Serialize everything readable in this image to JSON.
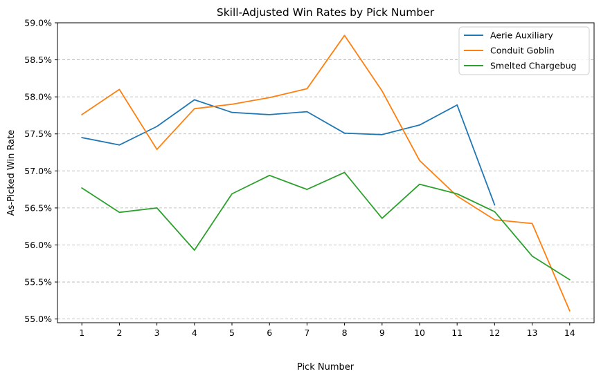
{
  "chart_data": {
    "type": "line",
    "title": "Skill-Adjusted Win Rates by Pick Number",
    "xlabel": "Pick Number",
    "ylabel": "As-Picked Win Rate",
    "x": [
      1,
      2,
      3,
      4,
      5,
      6,
      7,
      8,
      9,
      10,
      11,
      12,
      13,
      14
    ],
    "x_tick_labels": [
      "1",
      "2",
      "3",
      "4",
      "5",
      "6",
      "7",
      "8",
      "9",
      "10",
      "11",
      "12",
      "13",
      "14"
    ],
    "ylim": [
      54.95,
      59.0
    ],
    "y_ticks": [
      55.0,
      55.5,
      56.0,
      56.5,
      57.0,
      57.5,
      58.0,
      58.5,
      59.0
    ],
    "y_tick_labels": [
      "55.0%",
      "55.5%",
      "56.0%",
      "56.5%",
      "57.0%",
      "57.5%",
      "58.0%",
      "58.5%",
      "59.0%"
    ],
    "grid": "horizontal dashed",
    "legend_placement": "top-right",
    "series": [
      {
        "name": "Aerie Auxiliary",
        "color": "#1f77b4",
        "x": [
          1,
          2,
          3,
          4,
          5,
          6,
          7,
          8,
          9,
          10,
          11,
          12
        ],
        "values": [
          57.45,
          57.35,
          57.6,
          57.96,
          57.79,
          57.76,
          57.8,
          57.51,
          57.49,
          57.62,
          57.89,
          56.54
        ]
      },
      {
        "name": "Conduit Goblin",
        "color": "#ff7f0e",
        "x": [
          1,
          2,
          3,
          4,
          5,
          6,
          7,
          8,
          9,
          10,
          11,
          12,
          13,
          14
        ],
        "values": [
          57.76,
          58.1,
          57.29,
          57.84,
          57.9,
          57.99,
          58.11,
          58.83,
          58.08,
          57.14,
          56.66,
          56.34,
          56.29,
          55.11
        ]
      },
      {
        "name": "Smelted Chargebug",
        "color": "#2ca02c",
        "x": [
          1,
          2,
          3,
          4,
          5,
          6,
          7,
          8,
          9,
          10,
          11,
          12,
          13,
          14
        ],
        "values": [
          56.77,
          56.44,
          56.5,
          55.93,
          56.69,
          56.94,
          56.75,
          56.98,
          56.36,
          56.82,
          56.69,
          56.45,
          55.85,
          55.53
        ]
      }
    ]
  }
}
